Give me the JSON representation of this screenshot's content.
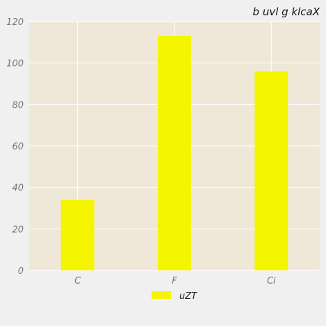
{
  "chart_data": {
    "type": "bar",
    "title": "b uvl g klcaX",
    "xlabel": "",
    "ylabel": "",
    "categories": [
      "C",
      "F",
      "Ci"
    ],
    "series": [
      {
        "name": "uZT",
        "values": [
          34,
          113,
          96
        ],
        "color": "#f5f500"
      }
    ],
    "ylim": [
      0,
      120
    ],
    "yticks": [
      0,
      20,
      40,
      60,
      80,
      100,
      120
    ],
    "grid": true,
    "legend_position": "bottom-center",
    "colors": {
      "plot_background": "#efe8d8",
      "page_background": "#f0f0f0",
      "grid": "#ffffff"
    }
  }
}
